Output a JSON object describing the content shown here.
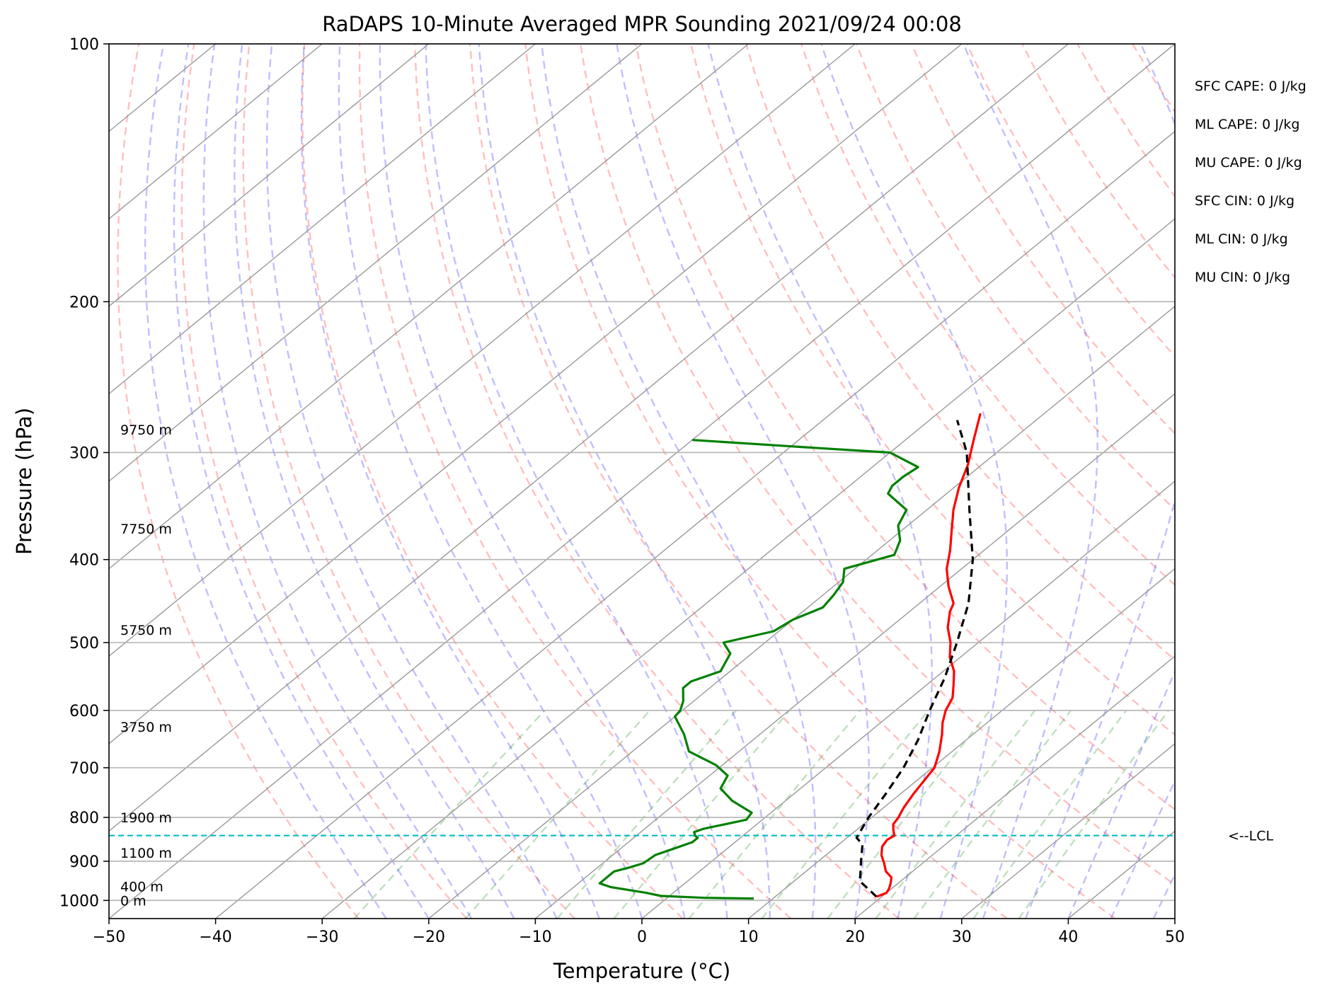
{
  "chart_data": {
    "type": "line",
    "chart_kind": "skew-T log-P sounding",
    "title": "RaDAPS 10-Minute Averaged MPR Sounding 2021/09/24 00:08",
    "xlabel": "Temperature (°C)",
    "ylabel": "Pressure (hPa)",
    "xlim": [
      -50,
      50
    ],
    "ylim": [
      1050,
      100
    ],
    "y_scale": "log",
    "grid": true,
    "x_ticks": [
      -50,
      -40,
      -30,
      -20,
      -10,
      0,
      10,
      20,
      30,
      40,
      50
    ],
    "x_tick_labels": [
      "−50",
      "−40",
      "−30",
      "−20",
      "−10",
      "0",
      "10",
      "20",
      "30",
      "40",
      "50"
    ],
    "y_ticks": [
      100,
      200,
      300,
      400,
      500,
      600,
      700,
      800,
      900,
      1000
    ],
    "y_tick_labels": [
      "100",
      "200",
      "300",
      "400",
      "500",
      "600",
      "700",
      "800",
      "900",
      "1000"
    ],
    "series": [
      {
        "key": "temperature",
        "color": "#ff0000",
        "style": "solid",
        "points": [
          [
            990,
            19.5
          ],
          [
            980,
            20.0
          ],
          [
            970,
            19.8
          ],
          [
            955,
            19.3
          ],
          [
            940,
            18.7
          ],
          [
            925,
            17.5
          ],
          [
            905,
            16.4
          ],
          [
            885,
            15.2
          ],
          [
            865,
            14.3
          ],
          [
            850,
            14.0
          ],
          [
            840,
            14.2
          ],
          [
            830,
            13.6
          ],
          [
            815,
            12.8
          ],
          [
            800,
            12.5
          ],
          [
            780,
            11.9
          ],
          [
            750,
            11.2
          ],
          [
            700,
            10.2
          ],
          [
            670,
            8.8
          ],
          [
            640,
            7.1
          ],
          [
            620,
            5.8
          ],
          [
            600,
            4.7
          ],
          [
            580,
            3.9
          ],
          [
            560,
            2.5
          ],
          [
            540,
            1.0
          ],
          [
            520,
            -1.0
          ],
          [
            500,
            -2.6
          ],
          [
            480,
            -4.6
          ],
          [
            460,
            -6.2
          ],
          [
            450,
            -6.8
          ],
          [
            430,
            -9.2
          ],
          [
            410,
            -11.4
          ],
          [
            390,
            -13.2
          ],
          [
            370,
            -15.3
          ],
          [
            350,
            -17.5
          ],
          [
            330,
            -19.5
          ],
          [
            310,
            -21.3
          ],
          [
            290,
            -23.6
          ],
          [
            270,
            -26.0
          ]
        ]
      },
      {
        "key": "dewpoint",
        "color": "#008000",
        "style": "solid",
        "points": [
          [
            995,
            8.2
          ],
          [
            993,
            3.5
          ],
          [
            988,
            -0.8
          ],
          [
            980,
            -2.5
          ],
          [
            965,
            -6.5
          ],
          [
            955,
            -8.0
          ],
          [
            940,
            -8.0
          ],
          [
            925,
            -8.0
          ],
          [
            915,
            -7.0
          ],
          [
            905,
            -6.2
          ],
          [
            885,
            -6.0
          ],
          [
            870,
            -5.0
          ],
          [
            855,
            -4.0
          ],
          [
            845,
            -4.0
          ],
          [
            840,
            -4.5
          ],
          [
            832,
            -5.0
          ],
          [
            825,
            -4.5
          ],
          [
            815,
            -3.0
          ],
          [
            805,
            -1.5
          ],
          [
            790,
            -1.8
          ],
          [
            765,
            -5.0
          ],
          [
            740,
            -7.5
          ],
          [
            715,
            -8.3
          ],
          [
            695,
            -10.6
          ],
          [
            670,
            -14.7
          ],
          [
            640,
            -17.1
          ],
          [
            610,
            -20.0
          ],
          [
            600,
            -20.2
          ],
          [
            585,
            -21.0
          ],
          [
            565,
            -22.5
          ],
          [
            555,
            -22.5
          ],
          [
            540,
            -20.9
          ],
          [
            515,
            -22.0
          ],
          [
            500,
            -23.9
          ],
          [
            485,
            -20.5
          ],
          [
            470,
            -20.0
          ],
          [
            455,
            -18.6
          ],
          [
            440,
            -19.0
          ],
          [
            425,
            -19.6
          ],
          [
            410,
            -21.0
          ],
          [
            395,
            -17.9
          ],
          [
            380,
            -19.0
          ],
          [
            365,
            -20.9
          ],
          [
            350,
            -21.9
          ],
          [
            335,
            -25.5
          ],
          [
            328,
            -26.0
          ],
          [
            320,
            -26.0
          ],
          [
            312,
            -25.7
          ],
          [
            300,
            -30.0
          ],
          [
            295,
            -40.0
          ],
          [
            290,
            -50.0
          ]
        ]
      },
      {
        "key": "parcel",
        "color": "#000000",
        "style": "dashed",
        "points": [
          [
            990,
            19.5
          ],
          [
            950,
            16.2
          ],
          [
            900,
            14.0
          ],
          [
            860,
            12.2
          ],
          [
            845,
            10.9
          ],
          [
            800,
            9.7
          ],
          [
            750,
            8.6
          ],
          [
            700,
            7.3
          ],
          [
            650,
            5.5
          ],
          [
            600,
            3.2
          ],
          [
            550,
            0.9
          ],
          [
            500,
            -2.0
          ],
          [
            450,
            -5.4
          ],
          [
            400,
            -10.0
          ],
          [
            350,
            -16.0
          ],
          [
            300,
            -22.8
          ],
          [
            275,
            -27.4
          ]
        ]
      }
    ],
    "reference_lines": {
      "dry_adiabats": {
        "color": "#ff0000",
        "style": "dashed",
        "alpha": 0.25
      },
      "moist_adiabats": {
        "color": "#0000ff",
        "style": "dashed",
        "alpha": 0.25
      },
      "mixing_ratio_lines": {
        "color": "#008000",
        "style": "dashed",
        "alpha": 0.25
      },
      "isotherms": {
        "color": "#999999",
        "style": "solid"
      },
      "lcl_line": {
        "pressure": 840,
        "color": "#00bfc4",
        "style": "dashed"
      }
    },
    "height_labels": [
      {
        "text": "9750 m",
        "pressure": 282
      },
      {
        "text": "7750 m",
        "pressure": 368
      },
      {
        "text": "5750 m",
        "pressure": 483
      },
      {
        "text": "3750 m",
        "pressure": 627
      },
      {
        "text": "1900 m",
        "pressure": 800
      },
      {
        "text": "1100 m",
        "pressure": 880
      },
      {
        "text": "400 m",
        "pressure": 963
      },
      {
        "text": "0 m",
        "pressure": 1000
      }
    ],
    "lcl_label": "<--LCL",
    "stats": [
      "SFC CAPE: 0 J/kg",
      "ML CAPE: 0 J/kg",
      "MU CAPE: 0 J/kg",
      "SFC CIN: 0 J/kg",
      "ML CIN: 0 J/kg",
      "MU CIN: 0 J/kg"
    ]
  }
}
